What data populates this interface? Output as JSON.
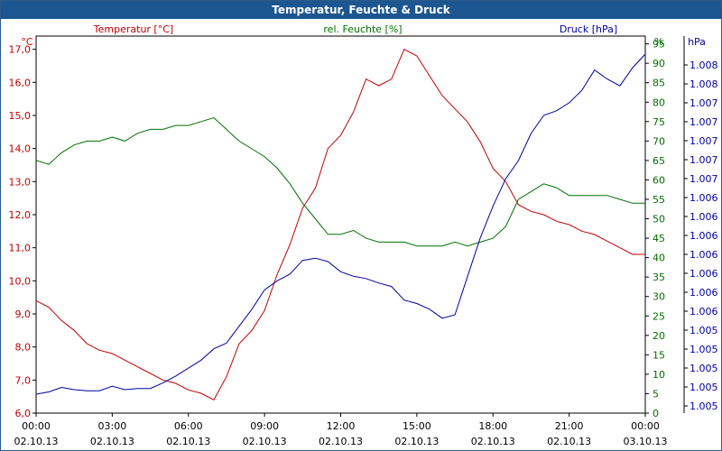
{
  "window": {
    "title": "Temperatur, Feuchte & Druck"
  },
  "colors": {
    "temperature": "#c00000",
    "humidity": "#007000",
    "pressure": "#0000a0",
    "grid": "#000000"
  },
  "chart_data": {
    "type": "line",
    "title": "Temperatur, Feuchte & Druck",
    "x_ticks": [
      {
        "time": "00:00",
        "date": "02.10.13"
      },
      {
        "time": "03:00",
        "date": "02.10.13"
      },
      {
        "time": "06:00",
        "date": "02.10.13"
      },
      {
        "time": "09:00",
        "date": "02.10.13"
      },
      {
        "time": "12:00",
        "date": "02.10.13"
      },
      {
        "time": "15:00",
        "date": "02.10.13"
      },
      {
        "time": "18:00",
        "date": "02.10.13"
      },
      {
        "time": "21:00",
        "date": "02.10.13"
      },
      {
        "time": "00:00",
        "date": "03.10.13"
      }
    ],
    "x_range_hours": [
      0,
      24
    ],
    "grid": true,
    "axes": {
      "temperature": {
        "unit": "°C",
        "label": "Temperatur [°C]",
        "ylim": [
          6.0,
          17.4
        ],
        "ticks": [
          "6,0",
          "7,0",
          "8,0",
          "9,0",
          "10,0",
          "11,0",
          "12,0",
          "13,0",
          "14,0",
          "15,0",
          "16,0",
          "17,0"
        ]
      },
      "humidity": {
        "unit": "%",
        "label": "rel. Feuchte [%]",
        "ylim": [
          0,
          97
        ],
        "ticks": [
          "0",
          "5",
          "10",
          "15",
          "20",
          "25",
          "30",
          "35",
          "40",
          "45",
          "50",
          "55",
          "60",
          "65",
          "70",
          "75",
          "80",
          "85",
          "90",
          "95"
        ]
      },
      "pressure": {
        "unit": "hPa",
        "label": "Druck [hPa]",
        "ticks": [
          "1.005",
          "1.005",
          "1.005",
          "1.005",
          "1.005",
          "1.006",
          "1.006",
          "1.006",
          "1.006",
          "1.006",
          "1.006",
          "1.006",
          "1.007",
          "1.007",
          "1.007",
          "1.007",
          "1.007",
          "1.008",
          "1.008"
        ]
      }
    },
    "series": [
      {
        "name": "Temperatur [°C]",
        "axis": "temperature",
        "x": [
          0,
          0.5,
          1,
          1.5,
          2,
          2.5,
          3,
          3.5,
          4,
          4.5,
          5,
          5.5,
          6,
          6.5,
          7,
          7.5,
          8,
          8.5,
          9,
          9.5,
          10,
          10.5,
          11,
          11.5,
          12,
          12.5,
          13,
          13.5,
          14,
          14.5,
          15,
          15.5,
          16,
          16.5,
          17,
          17.5,
          18,
          18.5,
          19,
          19.5,
          20,
          20.5,
          21,
          21.5,
          22,
          22.5,
          23,
          23.5,
          24
        ],
        "values": [
          9.4,
          9.2,
          8.8,
          8.5,
          8.1,
          7.9,
          7.8,
          7.6,
          7.4,
          7.2,
          7.0,
          6.9,
          6.7,
          6.6,
          6.4,
          7.1,
          8.1,
          8.5,
          9.1,
          10.2,
          11.1,
          12.2,
          12.8,
          14.0,
          14.4,
          15.1,
          16.1,
          15.9,
          16.1,
          17.0,
          16.8,
          16.2,
          15.6,
          15.2,
          14.8,
          14.2,
          13.4,
          13.0,
          12.3,
          12.1,
          12.0,
          11.8,
          11.7,
          11.5,
          11.4,
          11.2,
          11.0,
          10.8,
          10.8
        ]
      },
      {
        "name": "rel. Feuchte [%]",
        "axis": "humidity",
        "x": [
          0,
          0.5,
          1,
          1.5,
          2,
          2.5,
          3,
          3.5,
          4,
          4.5,
          5,
          5.5,
          6,
          6.5,
          7,
          7.5,
          8,
          8.5,
          9,
          9.5,
          10,
          10.5,
          11,
          11.5,
          12,
          12.5,
          13,
          13.5,
          14,
          14.5,
          15,
          15.5,
          16,
          16.5,
          17,
          17.5,
          18,
          18.5,
          19,
          19.5,
          20,
          20.5,
          21,
          21.5,
          22,
          22.5,
          23,
          23.5,
          24
        ],
        "values": [
          65,
          64,
          67,
          69,
          70,
          70,
          71,
          70,
          72,
          73,
          73,
          74,
          74,
          75,
          76,
          73,
          70,
          68,
          66,
          63,
          59,
          54,
          50,
          46,
          46,
          47,
          45,
          44,
          44,
          44,
          43,
          43,
          43,
          44,
          43,
          44,
          45,
          48,
          55,
          57,
          59,
          58,
          56,
          56,
          56,
          56,
          55,
          54,
          54
        ]
      },
      {
        "name": "Druck [hPa]",
        "axis": "pressure",
        "x": [
          0,
          0.5,
          1,
          1.5,
          2,
          2.5,
          3,
          3.5,
          4,
          4.5,
          5,
          5.5,
          6,
          6.5,
          7,
          7.5,
          8,
          8.5,
          9,
          9.5,
          10,
          10.5,
          11,
          11.5,
          12,
          12.5,
          13,
          13.5,
          14,
          14.5,
          15,
          15.5,
          16,
          16.5,
          17,
          17.5,
          18,
          18.5,
          19,
          19.5,
          20,
          20.5,
          21,
          21.5,
          22,
          22.5,
          23,
          23.5,
          24
        ],
        "values": [
          1.005,
          1.00502,
          1.00506,
          1.00504,
          1.00503,
          1.00503,
          1.00507,
          1.00504,
          1.00505,
          1.00505,
          1.0051,
          1.00516,
          1.00523,
          1.0053,
          1.0054,
          1.00545,
          1.0056,
          1.00575,
          1.00592,
          1.006,
          1.00606,
          1.00618,
          1.0062,
          1.00617,
          1.00608,
          1.00604,
          1.00602,
          1.00598,
          1.00595,
          1.00583,
          1.0058,
          1.00575,
          1.00567,
          1.0057,
          1.00604,
          1.00638,
          1.00666,
          1.0069,
          1.00706,
          1.0073,
          1.00746,
          1.0075,
          1.00757,
          1.00768,
          1.00786,
          1.00778,
          1.00772,
          1.00788,
          1.008
        ]
      }
    ]
  }
}
